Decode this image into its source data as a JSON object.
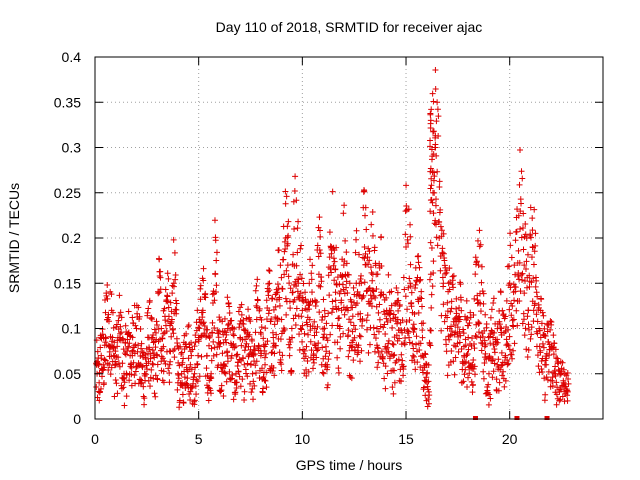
{
  "chart_data": {
    "type": "scatter",
    "title": "Day 110 of 2018, SRMTID for receiver ajac",
    "xlabel": "GPS time / hours",
    "ylabel": "SRMTID / TECUs",
    "xlim": [
      0,
      24.5
    ],
    "ylim": [
      0,
      0.4
    ],
    "x_ticks": [
      0,
      5,
      10,
      15,
      20
    ],
    "x_tick_labels": [
      "0",
      "5",
      "10",
      "15",
      "20"
    ],
    "y_ticks": [
      0,
      0.05,
      0.1,
      0.15,
      0.2,
      0.25,
      0.3,
      0.35,
      0.4
    ],
    "y_tick_labels": [
      "0",
      "0.05",
      "0.1",
      "0.15",
      "0.2",
      "0.25",
      "0.3",
      "0.35",
      "0.4"
    ],
    "grid": true,
    "marker": "plus",
    "series": [
      {
        "name": "SRMTID",
        "color": "#dd0000",
        "data_gaps_hours": [
          18.35,
          20.35,
          21.8
        ],
        "x": [
          0.1,
          0.2,
          0.3,
          0.4,
          0.5,
          0.6,
          0.7,
          0.8,
          0.9,
          1.0,
          1.2,
          1.4,
          1.6,
          1.8,
          2.0,
          2.2,
          2.4,
          2.6,
          2.8,
          3.0,
          3.1,
          3.2,
          3.3,
          3.5,
          3.6,
          3.8,
          4.0,
          4.2,
          4.4,
          4.6,
          4.8,
          5.0,
          5.2,
          5.4,
          5.6,
          5.8,
          6.0,
          6.2,
          6.4,
          6.6,
          6.8,
          7.0,
          7.2,
          7.4,
          7.6,
          7.8,
          8.0,
          8.2,
          8.4,
          8.6,
          8.8,
          9.0,
          9.2,
          9.3,
          9.4,
          9.5,
          9.6,
          9.8,
          10.0,
          10.2,
          10.4,
          10.6,
          10.8,
          11.0,
          11.2,
          11.4,
          11.6,
          11.8,
          12.0,
          12.2,
          12.4,
          12.6,
          12.8,
          13.0,
          13.2,
          13.4,
          13.6,
          13.8,
          14.0,
          14.2,
          14.4,
          14.6,
          14.8,
          15.0,
          15.2,
          15.4,
          15.6,
          15.8,
          16.0,
          16.1,
          16.2,
          16.3,
          16.4,
          16.5,
          16.6,
          16.8,
          17.0,
          17.2,
          17.4,
          17.6,
          17.8,
          18.0,
          18.2,
          18.5,
          18.8,
          19.0,
          19.2,
          19.4,
          19.6,
          19.8,
          20.0,
          20.2,
          20.5,
          20.7,
          20.9,
          21.1,
          21.3,
          21.5,
          21.7,
          22.0,
          22.2,
          22.4,
          22.6,
          22.8
        ],
        "y": [
          0.05,
          0.04,
          0.07,
          0.06,
          0.09,
          0.11,
          0.08,
          0.12,
          0.07,
          0.06,
          0.09,
          0.05,
          0.08,
          0.07,
          0.1,
          0.06,
          0.05,
          0.09,
          0.06,
          0.07,
          0.14,
          0.1,
          0.08,
          0.13,
          0.06,
          0.15,
          0.05,
          0.04,
          0.08,
          0.06,
          0.05,
          0.09,
          0.12,
          0.07,
          0.05,
          0.16,
          0.08,
          0.06,
          0.1,
          0.07,
          0.05,
          0.09,
          0.06,
          0.08,
          0.05,
          0.11,
          0.07,
          0.06,
          0.12,
          0.09,
          0.14,
          0.11,
          0.2,
          0.17,
          0.13,
          0.09,
          0.21,
          0.15,
          0.12,
          0.08,
          0.13,
          0.1,
          0.16,
          0.09,
          0.06,
          0.19,
          0.14,
          0.1,
          0.17,
          0.12,
          0.08,
          0.15,
          0.11,
          0.19,
          0.13,
          0.16,
          0.1,
          0.14,
          0.08,
          0.12,
          0.07,
          0.11,
          0.06,
          0.19,
          0.15,
          0.1,
          0.13,
          0.07,
          0.05,
          0.03,
          0.16,
          0.25,
          0.3,
          0.35,
          0.2,
          0.15,
          0.1,
          0.13,
          0.08,
          0.11,
          0.07,
          0.09,
          0.06,
          0.17,
          0.08,
          0.05,
          0.09,
          0.06,
          0.1,
          0.07,
          0.15,
          0.11,
          0.21,
          0.17,
          0.12,
          0.19,
          0.14,
          0.09,
          0.06,
          0.08,
          0.05,
          0.03,
          0.04,
          0.03
        ]
      }
    ]
  }
}
